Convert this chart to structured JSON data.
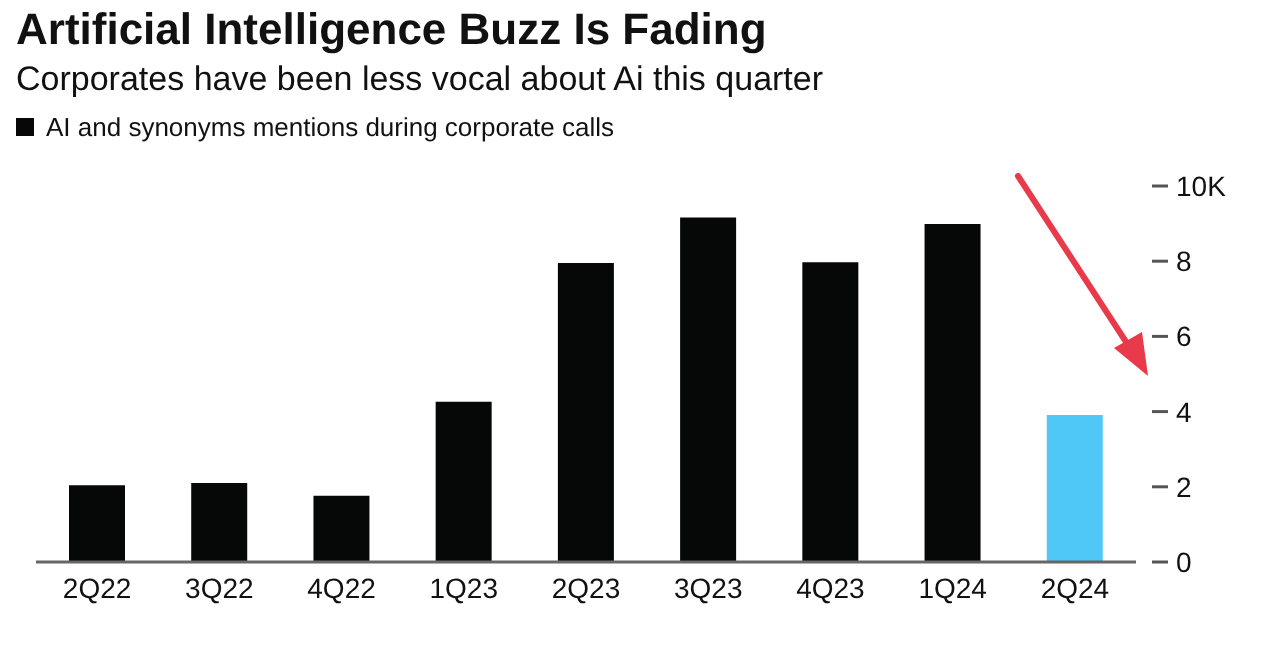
{
  "chart_data": {
    "type": "bar",
    "title": "Artificial Intelligence Buzz Is Fading",
    "subtitle": "Corporates have been less vocal about Ai this quarter",
    "categories": [
      "2Q22",
      "3Q22",
      "4Q22",
      "1Q23",
      "2Q23",
      "3Q23",
      "4Q23",
      "1Q24",
      "2Q24"
    ],
    "series": [
      {
        "name": "AI and synonyms mentions during corporate calls",
        "color": "#060807",
        "colors": [
          "#060807",
          "#060807",
          "#060807",
          "#060807",
          "#060807",
          "#060807",
          "#060807",
          "#060807",
          "#4fc8f8"
        ],
        "values": [
          2.04,
          2.1,
          1.76,
          4.26,
          7.95,
          9.16,
          7.97,
          8.99,
          3.91
        ]
      }
    ],
    "ylim": [
      0,
      10
    ],
    "yticks": [
      0,
      2,
      4,
      6,
      8,
      {
        "value": 10,
        "label": "10K"
      }
    ],
    "grid": false,
    "legend": "top left"
  }
}
